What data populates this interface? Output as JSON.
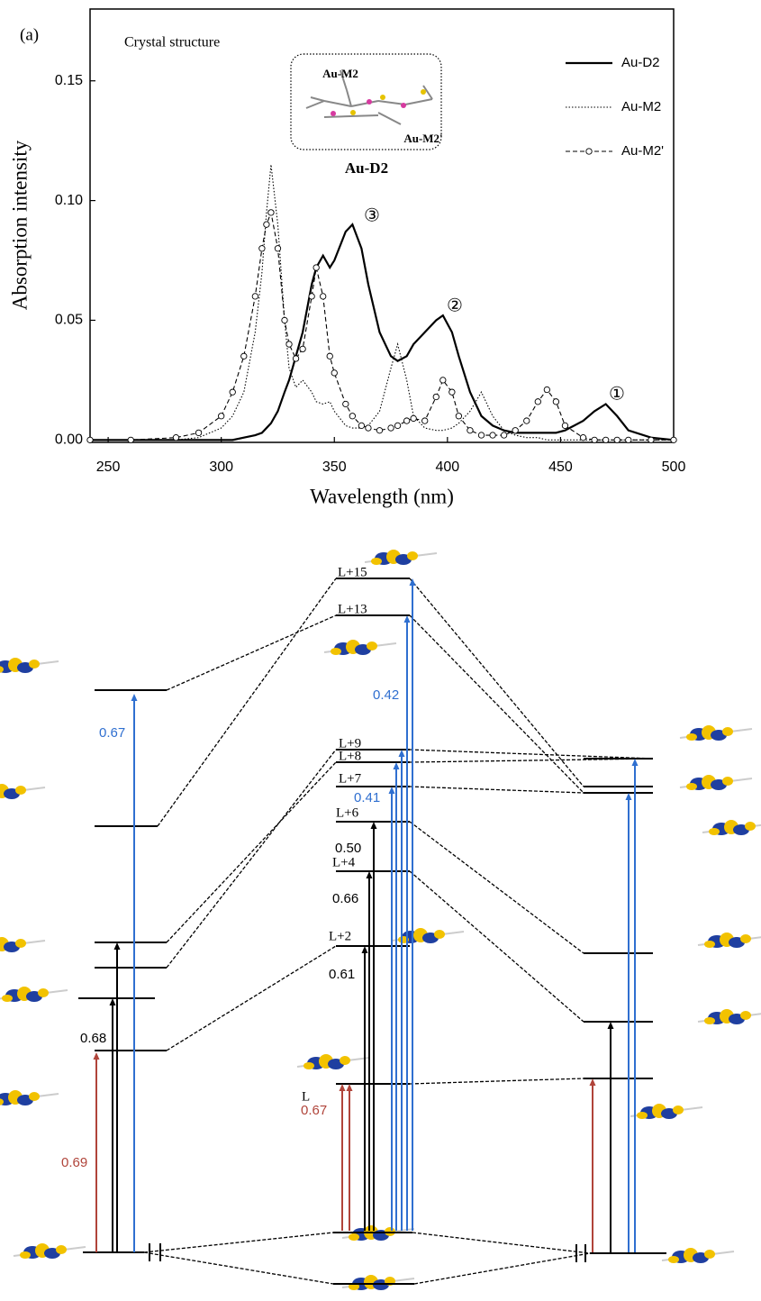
{
  "chart_data": {
    "type": "line",
    "x_label": "Wavelength (nm)",
    "y_label": "Absorption intensity",
    "annotations": [
      "(a)",
      "Crystal structure",
      "Au-D2",
      "Au-M2",
      "Au-M2'",
      "③",
      "②",
      "①"
    ],
    "x": [
      242,
      260,
      280,
      290,
      300,
      305,
      310,
      315,
      318,
      320,
      322,
      325,
      328,
      330,
      333,
      336,
      340,
      342,
      345,
      348,
      350,
      355,
      358,
      362,
      365,
      370,
      375,
      378,
      382,
      385,
      390,
      395,
      398,
      402,
      405,
      410,
      415,
      420,
      425,
      430,
      435,
      440,
      444,
      448,
      452,
      460,
      465,
      470,
      475,
      480,
      490,
      500
    ],
    "series": [
      {
        "name": "Au-D2",
        "color": "#000000",
        "style": "solid",
        "values": [
          0,
          0,
          0,
          0,
          0,
          0,
          0.001,
          0.002,
          0.003,
          0.005,
          0.007,
          0.012,
          0.02,
          0.025,
          0.035,
          0.045,
          0.065,
          0.072,
          0.077,
          0.072,
          0.075,
          0.087,
          0.09,
          0.08,
          0.065,
          0.045,
          0.035,
          0.033,
          0.035,
          0.04,
          0.045,
          0.05,
          0.052,
          0.045,
          0.035,
          0.02,
          0.01,
          0.006,
          0.004,
          0.003,
          0.003,
          0.003,
          0.003,
          0.003,
          0.004,
          0.008,
          0.012,
          0.015,
          0.01,
          0.004,
          0.001,
          0
        ]
      },
      {
        "name": "Au-M2",
        "color": "#000000",
        "style": "dotted",
        "values": [
          0,
          0,
          0,
          0.001,
          0.005,
          0.01,
          0.02,
          0.045,
          0.07,
          0.095,
          0.115,
          0.09,
          0.05,
          0.03,
          0.022,
          0.025,
          0.02,
          0.016,
          0.015,
          0.016,
          0.012,
          0.006,
          0.005,
          0.005,
          0.006,
          0.012,
          0.03,
          0.04,
          0.025,
          0.01,
          0.005,
          0.004,
          0.004,
          0.005,
          0.007,
          0.012,
          0.02,
          0.01,
          0.004,
          0.002,
          0.001,
          0.001,
          0,
          0,
          0,
          0,
          0,
          0,
          0,
          0,
          0,
          0
        ]
      },
      {
        "name": "Au-M2'",
        "color": "#000000",
        "style": "dashed",
        "marker": "circle",
        "values": [
          0,
          0,
          0.001,
          0.003,
          0.01,
          0.02,
          0.035,
          0.06,
          0.08,
          0.09,
          0.095,
          0.08,
          0.05,
          0.04,
          0.034,
          0.038,
          0.06,
          0.072,
          0.06,
          0.035,
          0.028,
          0.015,
          0.01,
          0.006,
          0.005,
          0.004,
          0.005,
          0.006,
          0.008,
          0.009,
          0.008,
          0.018,
          0.025,
          0.02,
          0.01,
          0.004,
          0.002,
          0.002,
          0.002,
          0.004,
          0.008,
          0.016,
          0.021,
          0.016,
          0.006,
          0.001,
          0,
          0,
          0,
          0,
          0,
          0
        ]
      }
    ],
    "xlim": [
      242,
      500
    ],
    "ylim": [
      -0.001,
      0.18
    ],
    "xticks": [
      250,
      300,
      350,
      400,
      450,
      500
    ],
    "yticks": [
      {
        "value": 0,
        "label": "0.00"
      },
      {
        "value": 0.05,
        "label": "0.05"
      },
      {
        "value": 0.1,
        "label": "0.10"
      },
      {
        "value": 0.15,
        "label": "0.15"
      }
    ],
    "legend": "upper right",
    "grid": false
  },
  "diagram": {
    "level_labels": [
      "L+15",
      "L+13",
      "L+9",
      "L+8",
      "L+7",
      "L+6",
      "L+4",
      "L+2",
      "L"
    ],
    "transition_labels": [
      "0.67",
      "0.42",
      "0.41",
      "0.50",
      "0.66",
      "0.61",
      "0.68",
      "0.69",
      "0.67"
    ]
  }
}
